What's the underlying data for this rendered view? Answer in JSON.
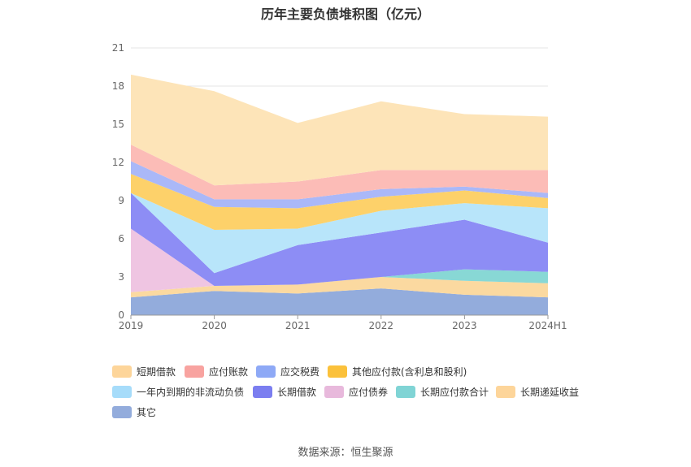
{
  "title": "历年主要负债堆积图（亿元）",
  "source": "数据来源：恒生聚源",
  "chart_data": {
    "type": "area",
    "stacked": true,
    "title": "历年主要负债堆积图（亿元）",
    "x": [
      "2019",
      "2020",
      "2021",
      "2022",
      "2023",
      "2024H1"
    ],
    "ylim": [
      0,
      21
    ],
    "yticks": [
      0,
      3,
      6,
      9,
      12,
      15,
      18,
      21
    ],
    "grid": true,
    "legend_position": "bottom",
    "series": [
      {
        "name": "其它",
        "color": "#93acdc",
        "values": [
          1.4,
          1.9,
          1.7,
          2.1,
          1.6,
          1.4
        ]
      },
      {
        "name": "长期递延收益",
        "color": "#fbd9a0",
        "values": [
          0.4,
          0.4,
          0.7,
          0.9,
          1.1,
          1.1
        ]
      },
      {
        "name": "长期应付款合计",
        "color": "#88d8d5",
        "values": [
          0.0,
          0.0,
          0.0,
          0.0,
          0.9,
          0.9
        ]
      },
      {
        "name": "应付债券",
        "color": "#efc5e2",
        "values": [
          5.0,
          0.0,
          0.0,
          0.0,
          0.0,
          0.0
        ]
      },
      {
        "name": "长期借款",
        "color": "#8d8df5",
        "values": [
          2.8,
          1.0,
          3.1,
          3.5,
          3.9,
          2.3
        ]
      },
      {
        "name": "一年内到期的非流动负债",
        "color": "#b8e5fa",
        "values": [
          0.0,
          3.4,
          1.3,
          1.7,
          1.3,
          2.7
        ]
      },
      {
        "name": "其他应付款(含利息和股利)",
        "color": "#fdd16a",
        "values": [
          1.5,
          1.8,
          1.6,
          1.1,
          1.0,
          0.8
        ]
      },
      {
        "name": "应交税费",
        "color": "#aab8f8",
        "values": [
          1.0,
          0.6,
          0.7,
          0.6,
          0.3,
          0.4
        ]
      },
      {
        "name": "应付账款",
        "color": "#fcbcb7",
        "values": [
          1.3,
          1.1,
          1.4,
          1.5,
          1.3,
          1.8
        ]
      },
      {
        "name": "短期借款",
        "color": "#fde4b8",
        "values": [
          5.5,
          7.4,
          4.6,
          5.4,
          4.4,
          4.2
        ]
      }
    ]
  },
  "legend": [
    {
      "label": "短期借款",
      "color": "#fdd59a"
    },
    {
      "label": "应付账款",
      "color": "#f8a3a0"
    },
    {
      "label": "应交税费",
      "color": "#8ea9f6"
    },
    {
      "label": "其他应付款(含利息和股利)",
      "color": "#fbc13b"
    },
    {
      "label": "一年内到期的非流动负债",
      "color": "#a6dcfa"
    },
    {
      "label": "长期借款",
      "color": "#7b7ef0"
    },
    {
      "label": "应付债券",
      "color": "#e8b9dc"
    },
    {
      "label": "长期应付款合计",
      "color": "#80d4d5"
    },
    {
      "label": "长期递延收益",
      "color": "#fdd59a"
    },
    {
      "label": "其它",
      "color": "#93acdc"
    }
  ]
}
